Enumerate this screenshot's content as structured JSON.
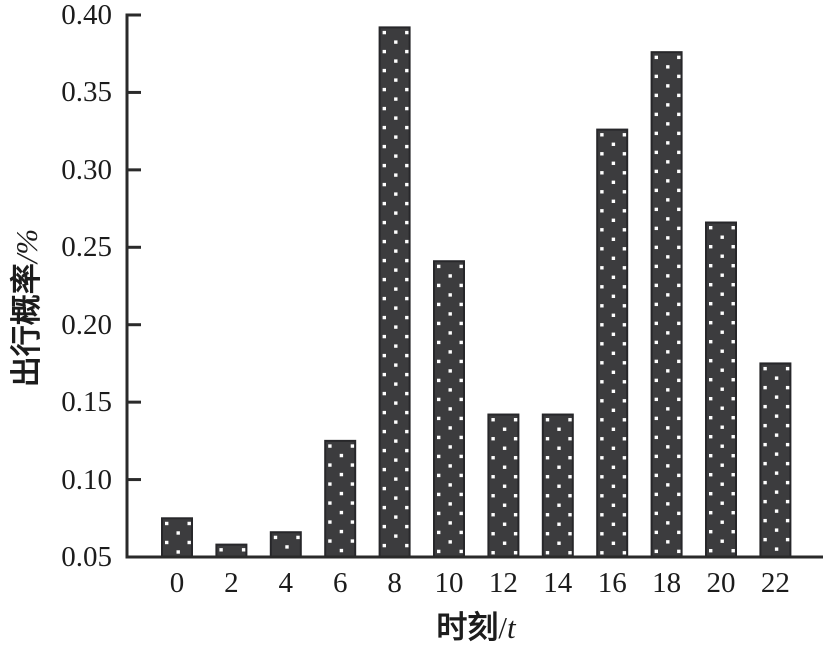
{
  "figure": {
    "background": "#ffffff"
  },
  "chart_data": {
    "type": "bar",
    "title": "",
    "xlabel": "时刻/t",
    "ylabel": "出行概率/%",
    "xlabel_parts": {
      "text": "时刻",
      "sep": "/",
      "var": "t"
    },
    "ylabel_parts": {
      "text": "出行概率",
      "sep": "/",
      "var": "%"
    },
    "categories": [
      0,
      2,
      4,
      6,
      8,
      10,
      12,
      14,
      16,
      18,
      20,
      22
    ],
    "values": [
      0.075,
      0.058,
      0.066,
      0.125,
      0.392,
      0.241,
      0.142,
      0.142,
      0.326,
      0.376,
      0.266,
      0.175
    ],
    "ylim": [
      0.05,
      0.4
    ],
    "y_ticks": [
      0.05,
      0.1,
      0.15,
      0.2,
      0.25,
      0.3,
      0.35,
      0.4
    ],
    "y_tick_decimals": 2,
    "grid": false,
    "legend": null,
    "bar_color": "#3c3c3e",
    "bar_border_color": "#27272a",
    "bar_dot_color": "#ffffff",
    "axis_color": "#2a2a2a",
    "text_color": "#1c1c1c"
  }
}
